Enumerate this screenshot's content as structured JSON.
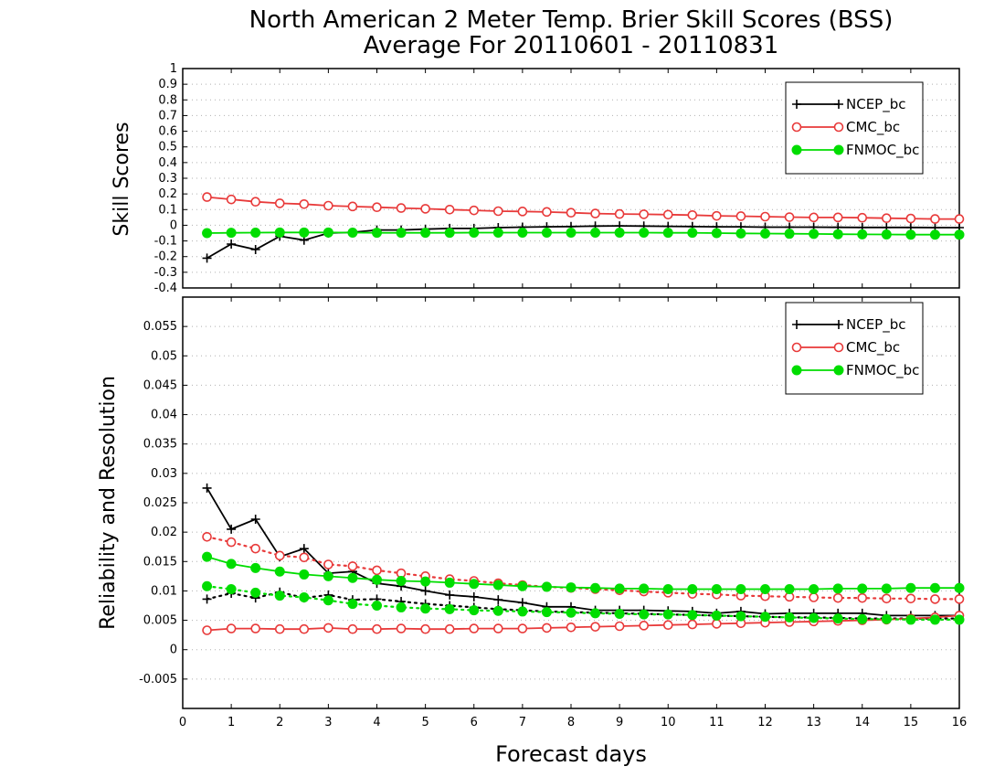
{
  "title_line1": "North American 2 Meter Temp. Brier Skill Scores (BSS)",
  "title_line2": "Average For 20110601 - 20110831",
  "xlabel": "Forecast days",
  "xlim": [
    0,
    16
  ],
  "xticks": [
    0,
    1,
    2,
    3,
    4,
    5,
    6,
    7,
    8,
    9,
    10,
    11,
    12,
    13,
    14,
    15,
    16
  ],
  "colors": {
    "NCEP_bc": "#000000",
    "CMC_bc": "#e83a3a",
    "FNMOC_bc": "#00dd00"
  },
  "chart_data": [
    {
      "type": "line",
      "panel": "top",
      "ylabel": "Skill Scores",
      "ylim": [
        -0.4,
        1
      ],
      "yticks": [
        "1",
        "0.9",
        "0.8",
        "0.7",
        "0.6",
        "0.5",
        "0.4",
        "0.3",
        "0.2",
        "0.1",
        "0",
        "-0.1",
        "-0.2",
        "-0.3",
        "-0.4"
      ],
      "grid": true,
      "legend_position": "top-right",
      "x": [
        0.5,
        1,
        1.5,
        2,
        2.5,
        3,
        3.5,
        4,
        4.5,
        5,
        5.5,
        6,
        6.5,
        7,
        7.5,
        8,
        8.5,
        9,
        9.5,
        10,
        10.5,
        11,
        11.5,
        12,
        12.5,
        13,
        13.5,
        14,
        14.5,
        15,
        15.5,
        16
      ],
      "series": [
        {
          "name": "NCEP_bc",
          "marker": "plus",
          "style": "solid",
          "values": [
            -0.21,
            -0.12,
            -0.155,
            -0.07,
            -0.095,
            -0.05,
            -0.045,
            -0.03,
            -0.03,
            -0.025,
            -0.02,
            -0.02,
            -0.015,
            -0.012,
            -0.01,
            -0.008,
            -0.005,
            -0.004,
            -0.005,
            -0.007,
            -0.008,
            -0.01,
            -0.01,
            -0.012,
            -0.012,
            -0.012,
            -0.013,
            -0.014,
            -0.014,
            -0.014,
            -0.015,
            -0.015
          ]
        },
        {
          "name": "CMC_bc",
          "marker": "circle-open",
          "style": "solid",
          "values": [
            0.18,
            0.165,
            0.15,
            0.14,
            0.135,
            0.125,
            0.12,
            0.115,
            0.11,
            0.105,
            0.1,
            0.095,
            0.09,
            0.088,
            0.085,
            0.08,
            0.075,
            0.072,
            0.07,
            0.068,
            0.065,
            0.06,
            0.058,
            0.055,
            0.052,
            0.05,
            0.05,
            0.048,
            0.045,
            0.043,
            0.04,
            0.04
          ]
        },
        {
          "name": "FNMOC_bc",
          "marker": "circle-filled",
          "style": "solid",
          "values": [
            -0.05,
            -0.048,
            -0.047,
            -0.046,
            -0.046,
            -0.046,
            -0.047,
            -0.048,
            -0.048,
            -0.048,
            -0.048,
            -0.047,
            -0.047,
            -0.047,
            -0.047,
            -0.047,
            -0.047,
            -0.047,
            -0.047,
            -0.048,
            -0.048,
            -0.05,
            -0.052,
            -0.053,
            -0.054,
            -0.055,
            -0.057,
            -0.058,
            -0.059,
            -0.06,
            -0.06,
            -0.06
          ]
        }
      ]
    },
    {
      "type": "line",
      "panel": "bottom",
      "ylabel": "Reliability and Resolution",
      "ylim": [
        -0.01,
        0.06
      ],
      "yticks": [
        "0.055",
        "0.05",
        "0.045",
        "0.04",
        "0.035",
        "0.03",
        "0.025",
        "0.02",
        "0.015",
        "0.01",
        "0.005",
        "0",
        "-0.005"
      ],
      "grid": true,
      "legend_position": "top-right",
      "x": [
        0.5,
        1,
        1.5,
        2,
        2.5,
        3,
        3.5,
        4,
        4.5,
        5,
        5.5,
        6,
        6.5,
        7,
        7.5,
        8,
        8.5,
        9,
        9.5,
        10,
        10.5,
        11,
        11.5,
        12,
        12.5,
        13,
        13.5,
        14,
        14.5,
        15,
        15.5,
        16
      ],
      "series": [
        {
          "name": "NCEP_bc",
          "marker": "plus",
          "style": "solid",
          "values": [
            0.0275,
            0.0205,
            0.0222,
            0.0158,
            0.0172,
            0.013,
            0.0133,
            0.0113,
            0.0108,
            0.01,
            0.0093,
            0.009,
            0.0085,
            0.008,
            0.0073,
            0.0073,
            0.0067,
            0.0067,
            0.0067,
            0.0066,
            0.0065,
            0.0062,
            0.0065,
            0.0061,
            0.0062,
            0.0062,
            0.0062,
            0.0062,
            0.0058,
            0.0058,
            0.0058,
            0.0058
          ]
        },
        {
          "name": "NCEP_bc",
          "marker": "plus",
          "style": "dotted",
          "values": [
            0.0086,
            0.0096,
            0.0088,
            0.0098,
            0.0088,
            0.0093,
            0.0085,
            0.0086,
            0.0082,
            0.0078,
            0.0075,
            0.0072,
            0.0069,
            0.0067,
            0.0065,
            0.0064,
            0.0063,
            0.0062,
            0.0061,
            0.006,
            0.0059,
            0.0058,
            0.0057,
            0.0056,
            0.0055,
            0.0055,
            0.0054,
            0.0053,
            0.0053,
            0.0053,
            0.0053,
            0.0053
          ]
        },
        {
          "name": "CMC_bc",
          "marker": "circle-open",
          "style": "solid",
          "values": [
            0.0033,
            0.0036,
            0.0036,
            0.0035,
            0.0035,
            0.0037,
            0.0035,
            0.0035,
            0.0036,
            0.0035,
            0.0035,
            0.0036,
            0.0036,
            0.0036,
            0.0037,
            0.0038,
            0.0039,
            0.004,
            0.0041,
            0.0042,
            0.0043,
            0.0044,
            0.0045,
            0.0046,
            0.0047,
            0.0048,
            0.0049,
            0.005,
            0.0051,
            0.0053,
            0.0055,
            0.0058
          ]
        },
        {
          "name": "CMC_bc",
          "marker": "circle-open",
          "style": "dotted",
          "values": [
            0.0192,
            0.0183,
            0.0172,
            0.016,
            0.0157,
            0.0145,
            0.0142,
            0.0135,
            0.013,
            0.0125,
            0.012,
            0.0117,
            0.0113,
            0.011,
            0.0107,
            0.0105,
            0.0103,
            0.0101,
            0.0099,
            0.0097,
            0.0095,
            0.0094,
            0.0092,
            0.0091,
            0.009,
            0.0089,
            0.0088,
            0.0088,
            0.0087,
            0.0087,
            0.0086,
            0.0086
          ]
        },
        {
          "name": "FNMOC_bc",
          "marker": "circle-filled",
          "style": "solid",
          "values": [
            0.0158,
            0.0146,
            0.0139,
            0.0133,
            0.0128,
            0.0125,
            0.0122,
            0.0119,
            0.0117,
            0.0116,
            0.0114,
            0.0112,
            0.011,
            0.0108,
            0.0107,
            0.0106,
            0.0105,
            0.0104,
            0.0104,
            0.0103,
            0.0103,
            0.0103,
            0.0103,
            0.0103,
            0.0103,
            0.0103,
            0.0104,
            0.0104,
            0.0104,
            0.0105,
            0.0105,
            0.0105
          ]
        },
        {
          "name": "FNMOC_bc",
          "marker": "circle-filled",
          "style": "dotted",
          "values": [
            0.0108,
            0.0103,
            0.0097,
            0.0092,
            0.0089,
            0.0084,
            0.0078,
            0.0075,
            0.0072,
            0.007,
            0.0069,
            0.0067,
            0.0066,
            0.0065,
            0.0064,
            0.0063,
            0.0062,
            0.0061,
            0.006,
            0.006,
            0.0059,
            0.0058,
            0.0057,
            0.0056,
            0.0055,
            0.0054,
            0.0053,
            0.0052,
            0.0052,
            0.0051,
            0.0051,
            0.0051
          ]
        }
      ]
    }
  ],
  "legend": {
    "items": [
      {
        "name": "NCEP_bc",
        "marker": "plus"
      },
      {
        "name": "CMC_bc",
        "marker": "circle-open"
      },
      {
        "name": "FNMOC_bc",
        "marker": "circle-filled"
      }
    ]
  }
}
